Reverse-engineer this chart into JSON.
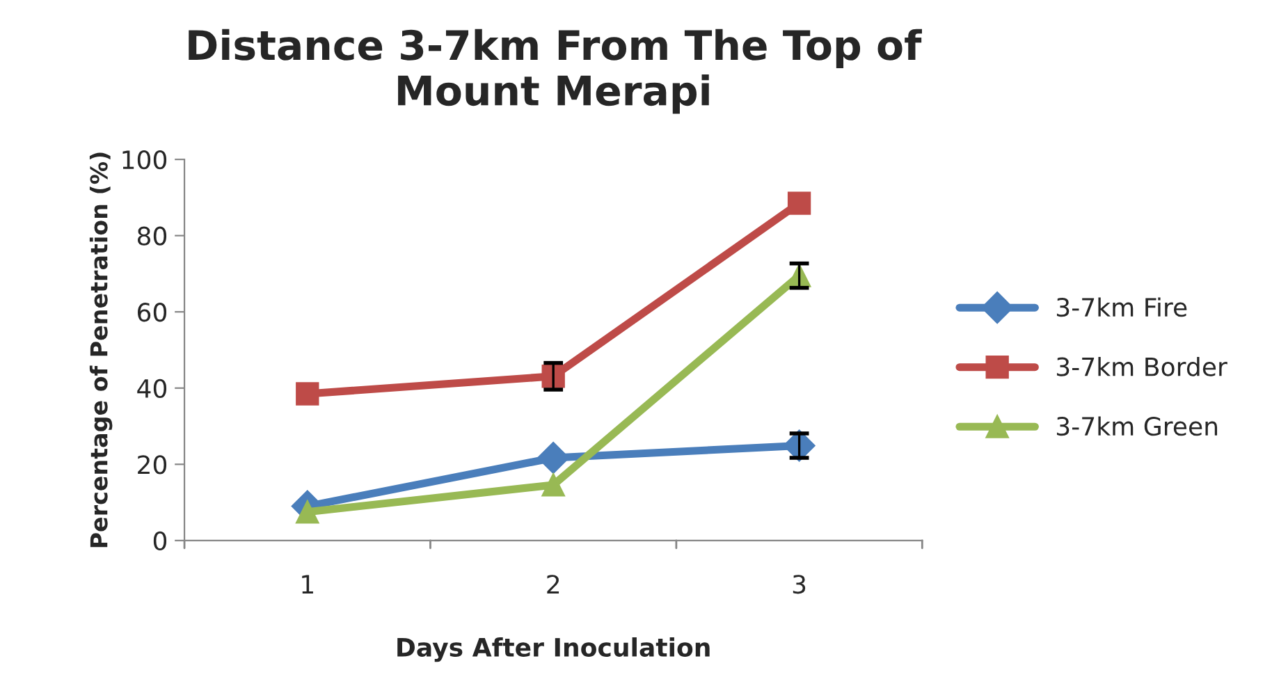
{
  "chart_data": {
    "type": "line",
    "title": "Distance 3-7km From The Top of\nMount Merapi",
    "xlabel": "Days After Inoculation",
    "ylabel": "Percentage of Penetration (%)",
    "categories": [
      "1",
      "2",
      "3"
    ],
    "series": [
      {
        "name": "3-7km Fire",
        "color": "#4a7ebb",
        "marker": "diamond",
        "values": [
          9,
          21.7,
          24.9
        ],
        "errors": [
          null,
          null,
          3.2
        ]
      },
      {
        "name": "3-7km Border",
        "color": "#be4b48",
        "marker": "square",
        "values": [
          38.5,
          43.1,
          88.5
        ],
        "errors": [
          null,
          3.5,
          null
        ]
      },
      {
        "name": "3-7km Green",
        "color": "#98b954",
        "marker": "triangle",
        "values": [
          7.5,
          14.6,
          69.5
        ],
        "errors": [
          null,
          null,
          3.2
        ]
      }
    ],
    "ylim": [
      0,
      100
    ],
    "yticks": [
      0,
      20,
      40,
      60,
      80,
      100
    ],
    "grid": false,
    "legend": "right"
  }
}
